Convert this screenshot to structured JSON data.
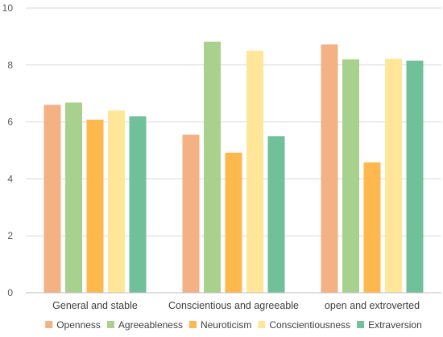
{
  "chart_data": {
    "type": "bar",
    "categories": [
      "General and stable",
      "Conscientious and agreeable",
      "open and extroverted"
    ],
    "series": [
      {
        "name": "Openness",
        "color": "#F4B183",
        "values": [
          6.6,
          5.55,
          8.72
        ]
      },
      {
        "name": "Agreeableness",
        "color": "#A9D18E",
        "values": [
          6.68,
          8.82,
          8.2
        ]
      },
      {
        "name": "Neuroticism",
        "color": "#FFB84D",
        "values": [
          6.08,
          4.92,
          4.58
        ]
      },
      {
        "name": "Conscientiousness",
        "color": "#FFE699",
        "values": [
          6.4,
          8.5,
          8.22
        ]
      },
      {
        "name": "Extraversion",
        "color": "#70C09A",
        "values": [
          6.2,
          5.5,
          8.15
        ]
      }
    ],
    "yticks": [
      "0",
      "2",
      "4",
      "6",
      "8",
      "10"
    ],
    "ylim": [
      0,
      10
    ],
    "grid": true,
    "legend_position": "bottom"
  }
}
